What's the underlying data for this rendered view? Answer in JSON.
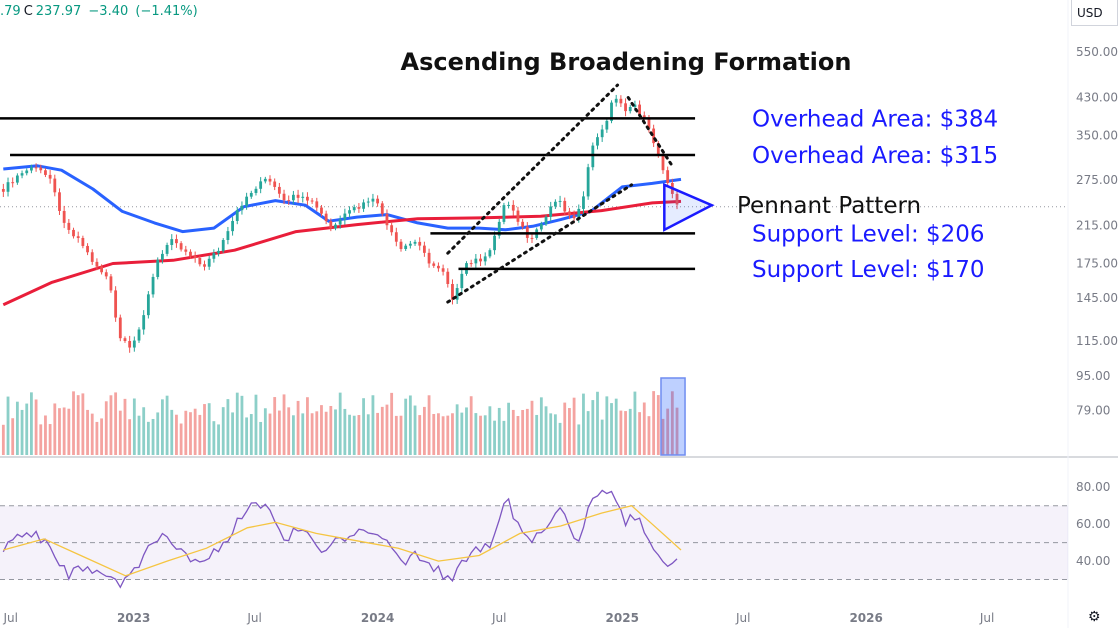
{
  "header": {
    "ohlc_partial": ".79",
    "close_label": "C",
    "close_value": "237.97",
    "change": "−3.40",
    "change_pct": "(−1.41%)",
    "currency": "USD"
  },
  "colors": {
    "up": "#26a69a",
    "down": "#ef5350",
    "up_vol": "#8ccfc8",
    "down_vol": "#f4a3a0",
    "ma_short": "#2962ff",
    "ma_long": "#e91e3a",
    "rsi": "#7e57c2",
    "rsi_ma": "#f5c542",
    "annotation": "#1a1aff",
    "level": "#000000"
  },
  "chart_data": {
    "type": "candlestick",
    "title": "Ascending Broadening Formation",
    "y_scale": "log",
    "ylim": [
      62,
      620
    ],
    "y_ticks": [
      "550.00",
      "430.00",
      "350.00",
      "275.00",
      "215.00",
      "175.00",
      "145.00",
      "115.00",
      "95.00",
      "79.00"
    ],
    "x_ticks": [
      "Jul",
      "2023",
      "Jul",
      "2024",
      "Jul",
      "2025",
      "Jul",
      "2026",
      "Jul"
    ],
    "x_range": [
      "2022-06-15",
      "2026-10-30"
    ],
    "price_series": [
      {
        "date": "2022-06-20",
        "close": 262
      },
      {
        "date": "2022-07-15",
        "close": 285
      },
      {
        "date": "2022-08-10",
        "close": 298
      },
      {
        "date": "2022-08-30",
        "close": 272
      },
      {
        "date": "2022-09-20",
        "close": 212
      },
      {
        "date": "2022-10-15",
        "close": 195
      },
      {
        "date": "2022-11-05",
        "close": 172
      },
      {
        "date": "2022-11-25",
        "close": 160
      },
      {
        "date": "2022-12-10",
        "close": 118
      },
      {
        "date": "2022-12-28",
        "close": 112
      },
      {
        "date": "2023-01-15",
        "close": 128
      },
      {
        "date": "2023-02-05",
        "close": 178
      },
      {
        "date": "2023-02-25",
        "close": 198
      },
      {
        "date": "2023-03-20",
        "close": 185
      },
      {
        "date": "2023-04-15",
        "close": 172
      },
      {
        "date": "2023-05-10",
        "close": 190
      },
      {
        "date": "2023-06-05",
        "close": 235
      },
      {
        "date": "2023-06-25",
        "close": 255
      },
      {
        "date": "2023-07-20",
        "close": 280
      },
      {
        "date": "2023-08-15",
        "close": 248
      },
      {
        "date": "2023-09-10",
        "close": 255
      },
      {
        "date": "2023-10-01",
        "close": 240
      },
      {
        "date": "2023-10-25",
        "close": 210
      },
      {
        "date": "2023-11-15",
        "close": 235
      },
      {
        "date": "2023-12-05",
        "close": 238
      },
      {
        "date": "2023-12-25",
        "close": 252
      },
      {
        "date": "2024-01-15",
        "close": 218
      },
      {
        "date": "2024-02-05",
        "close": 190
      },
      {
        "date": "2024-02-25",
        "close": 198
      },
      {
        "date": "2024-03-20",
        "close": 175
      },
      {
        "date": "2024-04-10",
        "close": 165
      },
      {
        "date": "2024-04-22",
        "close": 142
      },
      {
        "date": "2024-05-10",
        "close": 175
      },
      {
        "date": "2024-06-01",
        "close": 178
      },
      {
        "date": "2024-06-20",
        "close": 190
      },
      {
        "date": "2024-07-10",
        "close": 245
      },
      {
        "date": "2024-07-30",
        "close": 220
      },
      {
        "date": "2024-08-15",
        "close": 200
      },
      {
        "date": "2024-09-05",
        "close": 220
      },
      {
        "date": "2024-09-25",
        "close": 248
      },
      {
        "date": "2024-10-20",
        "close": 218
      },
      {
        "date": "2024-11-05",
        "close": 258
      },
      {
        "date": "2024-11-20",
        "close": 345
      },
      {
        "date": "2024-12-05",
        "close": 360
      },
      {
        "date": "2024-12-18",
        "close": 430
      },
      {
        "date": "2025-01-05",
        "close": 405
      },
      {
        "date": "2025-01-20",
        "close": 410
      },
      {
        "date": "2025-02-05",
        "close": 375
      },
      {
        "date": "2025-02-20",
        "close": 330
      },
      {
        "date": "2025-03-05",
        "close": 280
      },
      {
        "date": "2025-03-18",
        "close": 250
      },
      {
        "date": "2025-03-30",
        "close": 238
      }
    ],
    "moving_averages": [
      {
        "name": "MA short",
        "values": [
          {
            "date": "2022-06-20",
            "close": 292
          },
          {
            "date": "2022-08-10",
            "close": 297
          },
          {
            "date": "2022-09-15",
            "close": 290
          },
          {
            "date": "2022-11-01",
            "close": 262
          },
          {
            "date": "2022-12-15",
            "close": 232
          },
          {
            "date": "2023-02-01",
            "close": 218
          },
          {
            "date": "2023-03-15",
            "close": 208
          },
          {
            "date": "2023-05-01",
            "close": 212
          },
          {
            "date": "2023-06-15",
            "close": 238
          },
          {
            "date": "2023-08-01",
            "close": 246
          },
          {
            "date": "2023-09-15",
            "close": 240
          },
          {
            "date": "2023-10-20",
            "close": 220
          },
          {
            "date": "2023-12-01",
            "close": 225
          },
          {
            "date": "2024-01-15",
            "close": 228
          },
          {
            "date": "2024-03-01",
            "close": 218
          },
          {
            "date": "2024-04-15",
            "close": 212
          },
          {
            "date": "2024-06-01",
            "close": 212
          },
          {
            "date": "2024-07-10",
            "close": 210
          },
          {
            "date": "2024-08-20",
            "close": 214
          },
          {
            "date": "2024-10-01",
            "close": 222
          },
          {
            "date": "2024-11-15",
            "close": 232
          },
          {
            "date": "2025-01-01",
            "close": 265
          },
          {
            "date": "2025-02-15",
            "close": 270
          },
          {
            "date": "2025-03-30",
            "close": 276
          }
        ]
      },
      {
        "name": "MA long",
        "values": [
          {
            "date": "2022-06-20",
            "close": 140
          },
          {
            "date": "2022-09-01",
            "close": 158
          },
          {
            "date": "2022-12-01",
            "close": 175
          },
          {
            "date": "2023-03-01",
            "close": 178
          },
          {
            "date": "2023-06-01",
            "close": 188
          },
          {
            "date": "2023-09-01",
            "close": 208
          },
          {
            "date": "2023-12-01",
            "close": 216
          },
          {
            "date": "2024-03-01",
            "close": 223
          },
          {
            "date": "2024-06-01",
            "close": 224
          },
          {
            "date": "2024-09-01",
            "close": 226
          },
          {
            "date": "2024-12-01",
            "close": 233
          },
          {
            "date": "2025-02-15",
            "close": 243
          },
          {
            "date": "2025-03-30",
            "close": 245
          }
        ]
      }
    ],
    "horizontal_levels": [
      {
        "value": 384,
        "label": "Overhead Area: $384"
      },
      {
        "value": 315,
        "label": "Overhead Area: $315"
      },
      {
        "value": 206,
        "label": "Support Level: $206"
      },
      {
        "value": 170,
        "label": "Support Level: $170"
      }
    ],
    "pennant_label": "Pennant Pattern",
    "current_price": 237.97,
    "rsi": {
      "ylim": [
        20,
        85
      ],
      "y_ticks": [
        "80.00",
        "60.00",
        "40.00"
      ],
      "bands": [
        30,
        50,
        70
      ],
      "values": [
        {
          "date": "2022-06-20",
          "value": 48
        },
        {
          "date": "2022-07-20",
          "value": 55
        },
        {
          "date": "2022-08-20",
          "value": 52
        },
        {
          "date": "2022-09-25",
          "value": 32
        },
        {
          "date": "2022-10-20",
          "value": 38
        },
        {
          "date": "2022-11-15",
          "value": 34
        },
        {
          "date": "2022-12-15",
          "value": 27
        },
        {
          "date": "2023-01-20",
          "value": 45
        },
        {
          "date": "2023-02-15",
          "value": 56
        },
        {
          "date": "2023-03-15",
          "value": 45
        },
        {
          "date": "2023-04-15",
          "value": 38
        },
        {
          "date": "2023-05-20",
          "value": 52
        },
        {
          "date": "2023-06-20",
          "value": 70
        },
        {
          "date": "2023-07-20",
          "value": 72
        },
        {
          "date": "2023-08-15",
          "value": 52
        },
        {
          "date": "2023-09-10",
          "value": 60
        },
        {
          "date": "2023-10-10",
          "value": 45
        },
        {
          "date": "2023-11-05",
          "value": 52
        },
        {
          "date": "2023-12-10",
          "value": 58
        },
        {
          "date": "2024-01-20",
          "value": 50
        },
        {
          "date": "2024-02-10",
          "value": 38
        },
        {
          "date": "2024-03-01",
          "value": 44
        },
        {
          "date": "2024-03-25",
          "value": 36
        },
        {
          "date": "2024-04-22",
          "value": 30
        },
        {
          "date": "2024-05-20",
          "value": 46
        },
        {
          "date": "2024-06-20",
          "value": 48
        },
        {
          "date": "2024-07-12",
          "value": 74
        },
        {
          "date": "2024-08-10",
          "value": 50
        },
        {
          "date": "2024-09-10",
          "value": 60
        },
        {
          "date": "2024-10-01",
          "value": 68
        },
        {
          "date": "2024-10-25",
          "value": 50
        },
        {
          "date": "2024-11-15",
          "value": 72
        },
        {
          "date": "2024-12-10",
          "value": 79
        },
        {
          "date": "2025-01-05",
          "value": 62
        },
        {
          "date": "2025-01-25",
          "value": 64
        },
        {
          "date": "2025-02-15",
          "value": 48
        },
        {
          "date": "2025-03-05",
          "value": 38
        },
        {
          "date": "2025-03-30",
          "value": 39
        }
      ],
      "ma": [
        {
          "date": "2022-06-20",
          "value": 46
        },
        {
          "date": "2022-08-20",
          "value": 52
        },
        {
          "date": "2022-10-20",
          "value": 42
        },
        {
          "date": "2022-12-20",
          "value": 32
        },
        {
          "date": "2023-02-20",
          "value": 40
        },
        {
          "date": "2023-04-20",
          "value": 47
        },
        {
          "date": "2023-06-20",
          "value": 58
        },
        {
          "date": "2023-08-01",
          "value": 61
        },
        {
          "date": "2023-10-01",
          "value": 55
        },
        {
          "date": "2023-12-01",
          "value": 51
        },
        {
          "date": "2024-02-01",
          "value": 47
        },
        {
          "date": "2024-04-01",
          "value": 40
        },
        {
          "date": "2024-06-01",
          "value": 43
        },
        {
          "date": "2024-08-01",
          "value": 55
        },
        {
          "date": "2024-10-01",
          "value": 59
        },
        {
          "date": "2024-12-01",
          "value": 66
        },
        {
          "date": "2025-01-15",
          "value": 70
        },
        {
          "date": "2025-02-15",
          "value": 60
        },
        {
          "date": "2025-03-30",
          "value": 46
        }
      ]
    }
  }
}
